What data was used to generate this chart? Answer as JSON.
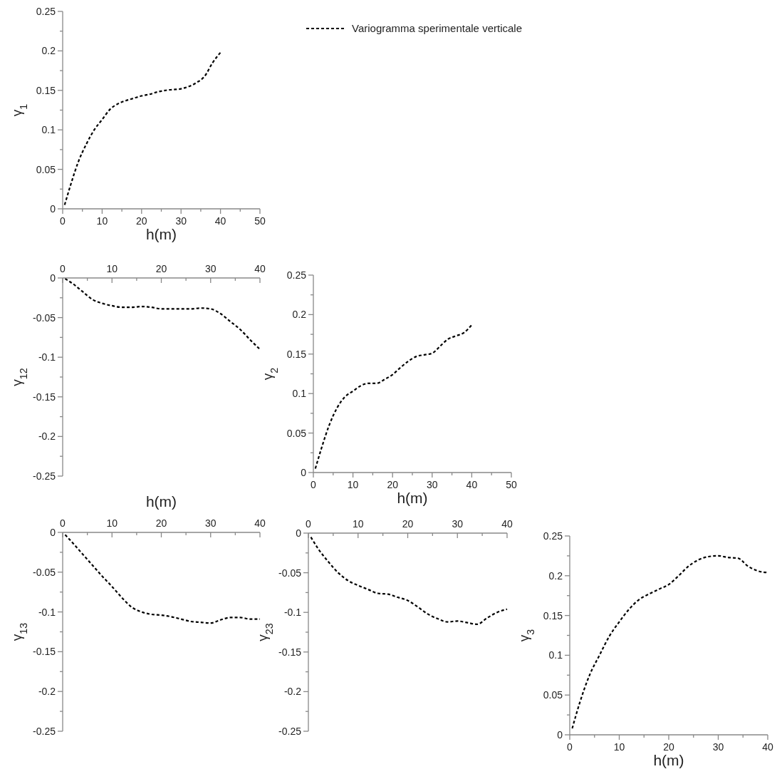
{
  "chart_data": [
    {
      "type": "line",
      "ylabel": "γ$_{1}$",
      "xlabel": "h(m)",
      "xlim": [
        0,
        50
      ],
      "xticks": [
        0,
        {
          "value": 5,
          "label": null
        },
        10,
        {
          "value": 15,
          "label": null
        },
        20,
        {
          "value": 25,
          "label": null
        },
        30,
        {
          "value": 35,
          "label": null
        },
        40,
        {
          "value": 45,
          "label": null
        },
        50
      ],
      "ylim": [
        0,
        0.25
      ],
      "yticks": [
        0,
        {
          "value": 0.025,
          "label": null
        },
        0.05,
        {
          "value": 0.075,
          "label": null
        },
        0.1,
        {
          "value": 0.125,
          "label": null
        },
        0.15,
        {
          "value": 0.175,
          "label": null
        },
        0.2,
        {
          "value": 0.225,
          "label": null
        },
        0.25
      ],
      "legend": "top right",
      "line_style": "dashed",
      "grid": false,
      "series": [
        {
          "name": "Variogramma sperimentale verticale",
          "color": "#000000",
          "x": [
            0.5,
            2,
            4,
            6,
            8,
            10,
            12,
            14,
            16,
            18,
            20,
            22,
            24,
            26,
            28,
            30,
            32,
            34,
            36,
            38,
            40
          ],
          "values": [
            0.005,
            0.03,
            0.06,
            0.082,
            0.1,
            0.113,
            0.126,
            0.133,
            0.137,
            0.14,
            0.143,
            0.145,
            0.148,
            0.15,
            0.151,
            0.152,
            0.155,
            0.16,
            0.168,
            0.185,
            0.198
          ]
        }
      ]
    },
    {
      "type": "line",
      "ylabel": "γ$_{12}$",
      "xlabel": "h(m)",
      "xlim": [
        0,
        40
      ],
      "xticks": [
        0,
        {
          "value": 5,
          "label": null
        },
        10,
        {
          "value": 15,
          "label": null
        },
        20,
        {
          "value": 25,
          "label": null
        },
        30,
        {
          "value": 35,
          "label": null
        },
        40
      ],
      "ylim": [
        -0.25,
        0
      ],
      "yticks": [
        -0.25,
        {
          "value": -0.225,
          "label": null
        },
        -0.2,
        {
          "value": -0.175,
          "label": null
        },
        -0.15,
        {
          "value": -0.125,
          "label": null
        },
        -0.1,
        {
          "value": -0.075,
          "label": null
        },
        -0.05,
        {
          "value": -0.025,
          "label": null
        },
        0
      ],
      "line_style": "dashed",
      "grid": false,
      "series": [
        {
          "color": "#000000",
          "x": [
            0.5,
            2,
            4,
            6,
            8,
            10,
            12,
            14,
            16,
            18,
            20,
            22,
            24,
            26,
            28,
            30,
            32,
            34,
            36,
            38,
            40
          ],
          "values": [
            -0.001,
            -0.007,
            -0.017,
            -0.027,
            -0.032,
            -0.035,
            -0.037,
            -0.037,
            -0.036,
            -0.037,
            -0.039,
            -0.039,
            -0.039,
            -0.039,
            -0.038,
            -0.039,
            -0.045,
            -0.055,
            -0.065,
            -0.078,
            -0.09
          ]
        }
      ]
    },
    {
      "type": "line",
      "ylabel": "γ$_{2}$",
      "xlabel": "h(m)",
      "xlim": [
        0,
        50
      ],
      "xticks": [
        0,
        {
          "value": 5,
          "label": null
        },
        10,
        {
          "value": 15,
          "label": null
        },
        20,
        {
          "value": 25,
          "label": null
        },
        30,
        {
          "value": 35,
          "label": null
        },
        40,
        {
          "value": 45,
          "label": null
        },
        50
      ],
      "ylim": [
        0,
        0.25
      ],
      "yticks": [
        0,
        {
          "value": 0.025,
          "label": null
        },
        0.05,
        {
          "value": 0.075,
          "label": null
        },
        0.1,
        {
          "value": 0.125,
          "label": null
        },
        0.15,
        {
          "value": 0.175,
          "label": null
        },
        0.2,
        {
          "value": 0.225,
          "label": null
        },
        0.25
      ],
      "line_style": "dashed",
      "grid": false,
      "series": [
        {
          "color": "#000000",
          "x": [
            0.5,
            2,
            4,
            6,
            8,
            10,
            12,
            14,
            16,
            18,
            20,
            22,
            24,
            26,
            28,
            30,
            32,
            34,
            36,
            38,
            40
          ],
          "values": [
            0.005,
            0.03,
            0.06,
            0.082,
            0.096,
            0.103,
            0.11,
            0.113,
            0.113,
            0.118,
            0.124,
            0.133,
            0.141,
            0.147,
            0.149,
            0.151,
            0.16,
            0.169,
            0.173,
            0.177,
            0.187
          ]
        }
      ]
    },
    {
      "type": "line",
      "ylabel": "γ$_{13}$",
      "xlim": [
        0,
        40
      ],
      "xticks": [
        0,
        {
          "value": 5,
          "label": null
        },
        10,
        {
          "value": 15,
          "label": null
        },
        20,
        {
          "value": 25,
          "label": null
        },
        30,
        {
          "value": 35,
          "label": null
        },
        40
      ],
      "ylim": [
        -0.25,
        0
      ],
      "yticks": [
        -0.25,
        {
          "value": -0.225,
          "label": null
        },
        -0.2,
        {
          "value": -0.175,
          "label": null
        },
        -0.15,
        {
          "value": -0.125,
          "label": null
        },
        -0.1,
        {
          "value": -0.075,
          "label": null
        },
        -0.05,
        {
          "value": -0.025,
          "label": null
        },
        0
      ],
      "line_style": "dashed",
      "grid": false,
      "series": [
        {
          "color": "#000000",
          "x": [
            0.5,
            2,
            4,
            6,
            8,
            10,
            12,
            14,
            16,
            18,
            20,
            22,
            24,
            26,
            28,
            30,
            32,
            34,
            36,
            38,
            40
          ],
          "values": [
            -0.003,
            -0.013,
            -0.027,
            -0.041,
            -0.055,
            -0.068,
            -0.082,
            -0.094,
            -0.1,
            -0.103,
            -0.104,
            -0.106,
            -0.109,
            -0.112,
            -0.113,
            -0.114,
            -0.11,
            -0.107,
            -0.107,
            -0.109,
            -0.109
          ]
        }
      ]
    },
    {
      "type": "line",
      "ylabel": "γ$_{23}$",
      "xlim": [
        0,
        40
      ],
      "xticks": [
        0,
        {
          "value": 5,
          "label": null
        },
        10,
        {
          "value": 15,
          "label": null
        },
        20,
        {
          "value": 25,
          "label": null
        },
        30,
        {
          "value": 35,
          "label": null
        },
        40
      ],
      "ylim": [
        -0.25,
        0
      ],
      "yticks": [
        -0.25,
        {
          "value": -0.225,
          "label": null
        },
        -0.2,
        {
          "value": -0.175,
          "label": null
        },
        -0.15,
        {
          "value": -0.125,
          "label": null
        },
        -0.1,
        {
          "value": -0.075,
          "label": null
        },
        -0.05,
        {
          "value": -0.025,
          "label": null
        },
        0
      ],
      "line_style": "dashed",
      "grid": false,
      "series": [
        {
          "color": "#000000",
          "x": [
            0.5,
            2,
            4,
            6,
            8,
            10,
            12,
            14,
            16,
            18,
            20,
            22,
            24,
            26,
            28,
            30,
            32,
            34,
            36,
            38,
            40
          ],
          "values": [
            -0.005,
            -0.02,
            -0.036,
            -0.05,
            -0.06,
            -0.066,
            -0.071,
            -0.076,
            -0.077,
            -0.081,
            -0.085,
            -0.093,
            -0.102,
            -0.108,
            -0.112,
            -0.111,
            -0.113,
            -0.115,
            -0.107,
            -0.1,
            -0.096
          ]
        }
      ]
    },
    {
      "type": "line",
      "ylabel": "γ$_{3}$",
      "xlabel": "h(m)",
      "xlim": [
        0,
        40
      ],
      "xticks": [
        0,
        {
          "value": 5,
          "label": null
        },
        10,
        {
          "value": 15,
          "label": null
        },
        20,
        {
          "value": 25,
          "label": null
        },
        30,
        {
          "value": 35,
          "label": null
        },
        40
      ],
      "ylim": [
        0,
        0.25
      ],
      "yticks": [
        0,
        {
          "value": 0.025,
          "label": null
        },
        0.05,
        {
          "value": 0.075,
          "label": null
        },
        0.1,
        {
          "value": 0.125,
          "label": null
        },
        0.15,
        {
          "value": 0.175,
          "label": null
        },
        0.2,
        {
          "value": 0.225,
          "label": null
        },
        0.25
      ],
      "line_style": "dashed",
      "grid": false,
      "series": [
        {
          "color": "#000000",
          "x": [
            0.5,
            2,
            4,
            6,
            8,
            10,
            12,
            14,
            16,
            18,
            20,
            22,
            24,
            26,
            28,
            30,
            32,
            34,
            36,
            38,
            40
          ],
          "values": [
            0.008,
            0.04,
            0.075,
            0.1,
            0.124,
            0.142,
            0.158,
            0.17,
            0.177,
            0.183,
            0.189,
            0.2,
            0.212,
            0.22,
            0.224,
            0.225,
            0.223,
            0.222,
            0.212,
            0.206,
            0.204
          ]
        }
      ]
    }
  ]
}
